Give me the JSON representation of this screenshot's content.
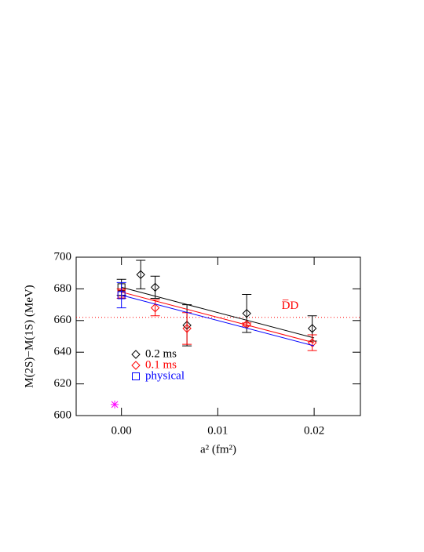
{
  "chart_data": {
    "type": "scatter",
    "xlabel": "a² (fm²)",
    "ylabel": "M(2S)−M(1S) (MeV)",
    "xlim": [
      -0.0047,
      0.0248
    ],
    "ylim": [
      600,
      700
    ],
    "xticks": [
      {
        "value": 0,
        "label": "0.00"
      },
      {
        "value": 0.01,
        "label": "0.01"
      },
      {
        "value": 0.02,
        "label": "0.02"
      }
    ],
    "yticks": [
      600,
      620,
      640,
      660,
      680,
      700
    ],
    "fit_x": [
      0,
      0.02
    ],
    "series": [
      {
        "name": "0.2 ms",
        "color": "#000000",
        "marker": "diamond",
        "x": [
          0.002,
          0.0035,
          0.0068,
          0.013,
          0.0198
        ],
        "values": [
          689,
          681,
          657,
          664.5,
          655
        ],
        "errors": [
          9,
          7,
          13,
          12,
          8
        ],
        "extrapolated": {
          "x": 0,
          "value": 681,
          "error": 5
        },
        "fit": [
          681,
          649
        ]
      },
      {
        "name": "0.1 ms",
        "color": "#ff0000",
        "marker": "diamond",
        "x": [
          0.0035,
          0.0068,
          0.013,
          0.0198
        ],
        "values": [
          668,
          655,
          657.5,
          646
        ],
        "errors": [
          5,
          10,
          1,
          5
        ],
        "extrapolated": {
          "x": 0,
          "value": 677,
          "error": 3
        },
        "fit": [
          678,
          646
        ]
      },
      {
        "name": "physical",
        "color": "#0000ff",
        "marker": "square",
        "x": [],
        "values": [],
        "errors": [],
        "extrapolated": {
          "x": 0,
          "value": 676,
          "error": 8
        },
        "fit": [
          676,
          644
        ]
      }
    ],
    "threshold": {
      "label": "D̅D",
      "value": 662,
      "color": "#ff0000",
      "label_x": 0.0175,
      "label_y": 669
    },
    "extra_point": {
      "x": -0.0007,
      "value": 607,
      "color": "#ff00ff"
    }
  }
}
